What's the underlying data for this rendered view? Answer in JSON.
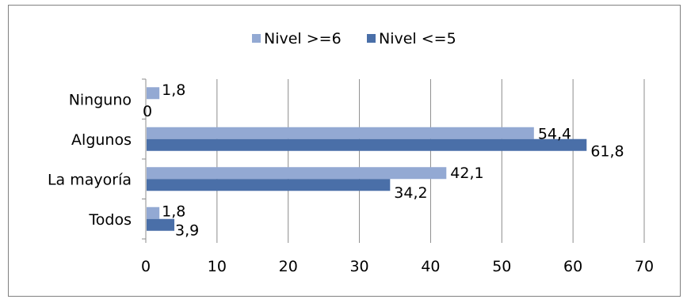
{
  "chart_data": {
    "type": "bar",
    "orientation": "horizontal",
    "categories": [
      "Ninguno",
      "Algunos",
      "La mayoría",
      "Todos"
    ],
    "series": [
      {
        "name": "Nivel >=6",
        "values": [
          1.8,
          54.4,
          42.1,
          1.8
        ],
        "labels": [
          "1,8",
          "54,4",
          "42,1",
          "1,8"
        ],
        "color": "#93A9D3"
      },
      {
        "name": "Nivel <=5",
        "values": [
          0,
          61.8,
          34.2,
          3.9
        ],
        "labels": [
          "0",
          "61,8",
          "34,2",
          "3,9"
        ],
        "color": "#4A6FA8"
      }
    ],
    "xlim": [
      0,
      70
    ],
    "xticks": [
      0,
      10,
      20,
      30,
      40,
      50,
      60,
      70
    ],
    "xtick_labels": [
      "0",
      "10",
      "20",
      "30",
      "40",
      "50",
      "60",
      "70"
    ],
    "grid": "vertical",
    "legend": "top-center",
    "title": "",
    "xlabel": "",
    "ylabel": ""
  }
}
